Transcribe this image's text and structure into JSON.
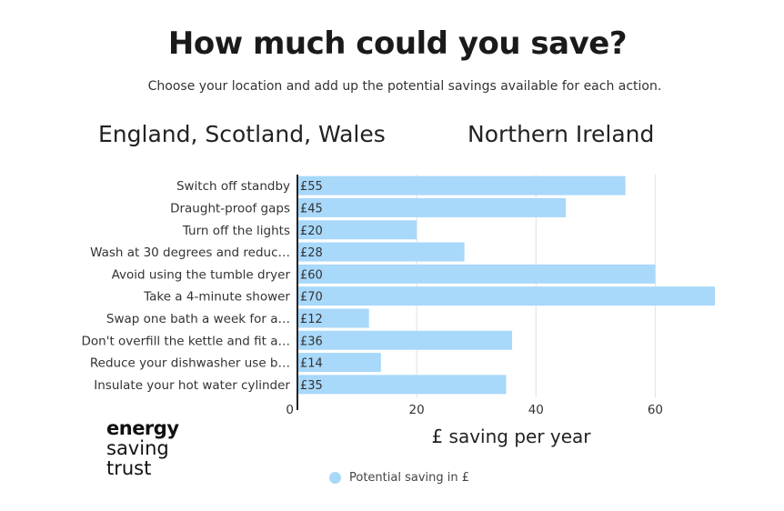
{
  "header": {
    "title": "How much could you save?",
    "subtitle": "Choose your location and add up the potential savings available for each action."
  },
  "locations": [
    "England, Scotland, Wales",
    "Northern Ireland"
  ],
  "logo": {
    "line1": "energy",
    "line2": "saving",
    "line3": "trust"
  },
  "colors": {
    "bar": "#a8d8fa",
    "axis": "#222222",
    "grid": "#e2e2e2"
  },
  "chart_data": {
    "type": "bar",
    "orientation": "horizontal",
    "categories": [
      "Switch off standby",
      "Draught-proof gaps",
      "Turn off the lights",
      "Wash at 30 degrees and reduc…",
      "Avoid using the tumble dryer",
      "Take a 4-minute shower",
      "Swap one bath a week for a…",
      "Don't overfill the kettle and fit a…",
      "Reduce your dishwasher use b…",
      "Insulate your hot water cylinder"
    ],
    "series": [
      {
        "name": "Potential saving in £",
        "values": [
          55,
          45,
          20,
          28,
          60,
          70,
          12,
          36,
          14,
          35
        ],
        "data_labels": [
          "£55",
          "£45",
          "£20",
          "£28",
          "£60",
          "£70",
          "£12",
          "£36",
          "£14",
          "£35"
        ]
      }
    ],
    "xlabel": "£ saving per year",
    "xlim": [
      0,
      70
    ],
    "xticks": [
      0,
      20,
      40,
      60
    ],
    "grid": true,
    "legend": "bottom"
  }
}
